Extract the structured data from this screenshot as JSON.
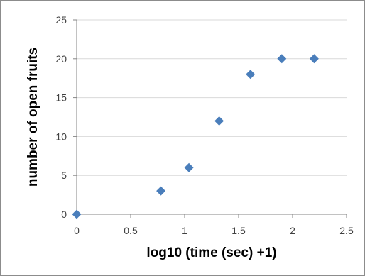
{
  "chart_data": {
    "type": "scatter",
    "title": "",
    "xlabel": "log10 (time (sec) +1)",
    "ylabel": "number of open fruits",
    "xlim": [
      0,
      2.5
    ],
    "ylim": [
      0,
      25
    ],
    "x_ticks": [
      "0",
      "0.5",
      "1",
      "1.5",
      "2",
      "2.5"
    ],
    "y_ticks": [
      "0",
      "5",
      "10",
      "15",
      "20",
      "25"
    ],
    "grid": "horizontal",
    "legend": "none",
    "series": [
      {
        "color": "#4a7ebb",
        "marker": "diamond",
        "points": [
          {
            "x": 0,
            "y": 0
          },
          {
            "x": 0.78,
            "y": 3
          },
          {
            "x": 1.04,
            "y": 6
          },
          {
            "x": 1.32,
            "y": 12
          },
          {
            "x": 1.61,
            "y": 18
          },
          {
            "x": 1.9,
            "y": 20
          },
          {
            "x": 2.2,
            "y": 20
          }
        ]
      }
    ],
    "colors": {
      "grid": "#d9d9d9",
      "axis": "#868686"
    }
  }
}
